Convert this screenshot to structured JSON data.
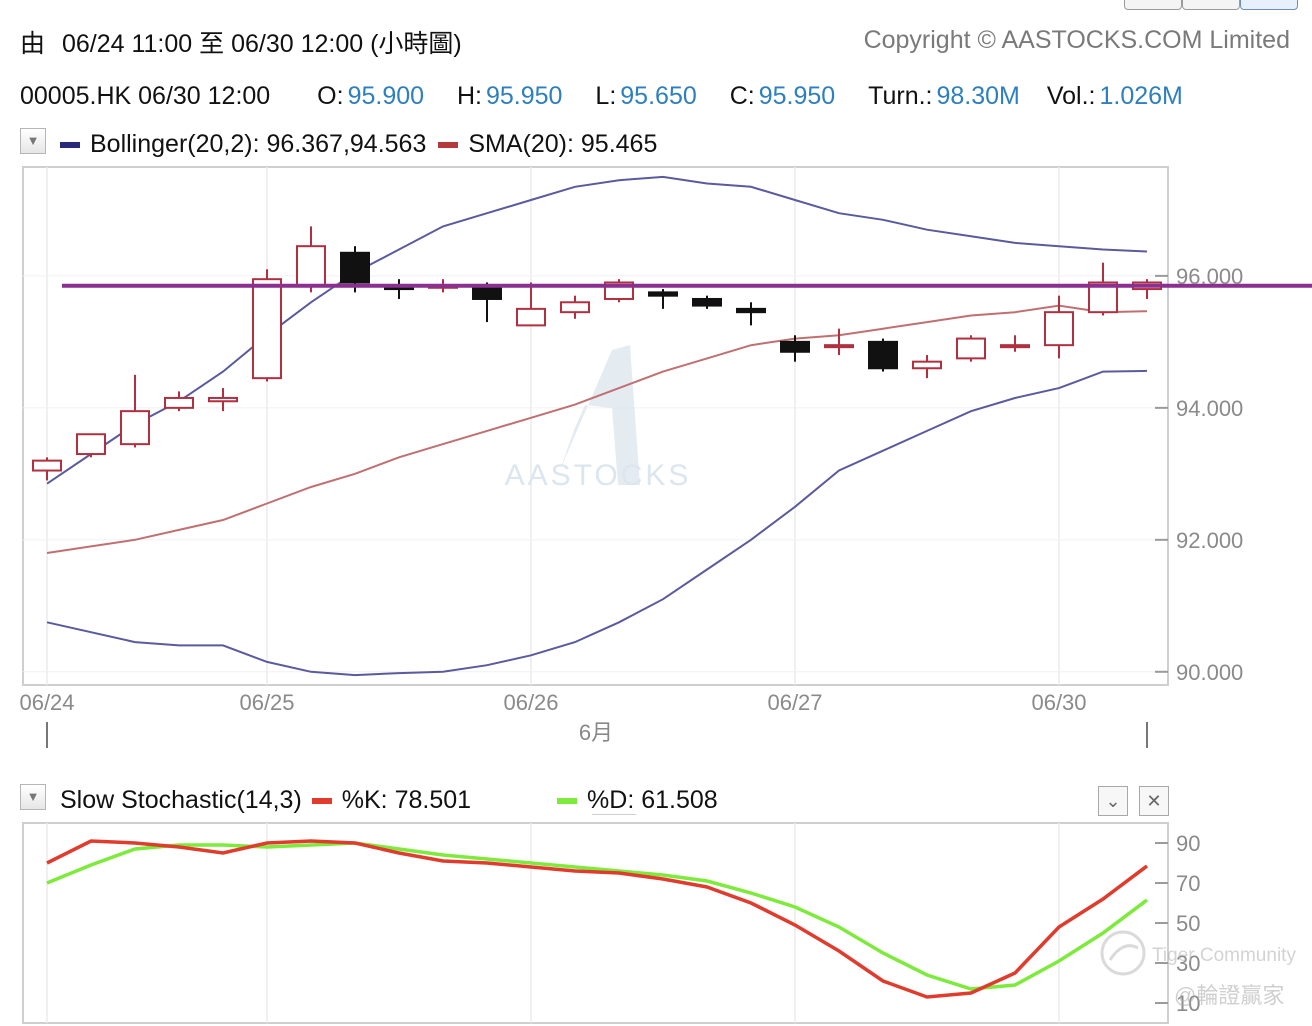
{
  "header": {
    "from_label": "由",
    "range_text": "06/24 11:00 至  06/30 12:00 (小時圖)",
    "copyright": "Copyright © AASTOCKS.COM Limited"
  },
  "quote": {
    "symbol_time": "00005.HK  06/30 12:00",
    "open_label": "O:",
    "open": "95.900",
    "high_label": "H:",
    "high": "95.950",
    "low_label": "L:",
    "low": "95.650",
    "close_label": "C:",
    "close": "95.950",
    "turn_label": "Turn.:",
    "turn": "98.30M",
    "vol_label": "Vol.:",
    "vol": "1.026M"
  },
  "main_legend": {
    "dropdown_icon": "triangle-down-icon",
    "bollinger_text": "Bollinger(20,2): 96.367,94.563",
    "sma_text": "SMA(20): 95.465",
    "bollinger_color": "#2b2a7a",
    "sma_color": "#b23a3a"
  },
  "stoch_legend": {
    "dropdown_icon": "triangle-down-icon",
    "title": "Slow Stochastic(14,3)",
    "k_text": "%K: 78.501",
    "d_text": "%D: 61.508",
    "k_color": "#e03c2e",
    "d_color": "#7dea3c",
    "collapse_icon": "chevron-down-icon",
    "close_icon": "close-icon"
  },
  "watermark": {
    "text": "AASTOCKS",
    "overlay_text_1": "Tiger Community",
    "overlay_text_2": "@輪證贏家"
  },
  "chart_data": [
    {
      "type": "candlestick",
      "title": "",
      "x_tick_labels": [
        {
          "label": "06/24",
          "index": 0
        },
        {
          "label": "06/25",
          "index": 5
        },
        {
          "label": "06/26",
          "index": 11
        },
        {
          "label": "06/27",
          "index": 17
        },
        {
          "label": "06/30",
          "index": 23
        }
      ],
      "month_label": "6月",
      "y_ticks": [
        "90.000",
        "92.000",
        "94.000",
        "96.000"
      ],
      "y_tick_values": [
        90,
        92,
        94,
        96
      ],
      "ylim": [
        89.8,
        97.65
      ],
      "horizontal_line": {
        "value": 95.85,
        "color": "#8b2f91"
      },
      "candles": [
        {
          "o": 93.05,
          "h": 93.25,
          "l": 92.9,
          "c": 93.2
        },
        {
          "o": 93.3,
          "h": 93.6,
          "l": 93.25,
          "c": 93.6
        },
        {
          "o": 93.45,
          "h": 94.5,
          "l": 93.4,
          "c": 93.95
        },
        {
          "o": 94.0,
          "h": 94.25,
          "l": 93.95,
          "c": 94.15
        },
        {
          "o": 94.1,
          "h": 94.3,
          "l": 93.95,
          "c": 94.15
        },
        {
          "o": 94.45,
          "h": 96.1,
          "l": 94.4,
          "c": 95.95
        },
        {
          "o": 95.85,
          "h": 96.75,
          "l": 95.75,
          "c": 96.45
        },
        {
          "o": 96.35,
          "h": 96.45,
          "l": 95.75,
          "c": 95.9
        },
        {
          "o": 95.85,
          "h": 95.95,
          "l": 95.65,
          "c": 95.8
        },
        {
          "o": 95.85,
          "h": 95.95,
          "l": 95.75,
          "c": 95.85
        },
        {
          "o": 95.85,
          "h": 95.9,
          "l": 95.3,
          "c": 95.65
        },
        {
          "o": 95.25,
          "h": 95.9,
          "l": 95.25,
          "c": 95.5
        },
        {
          "o": 95.45,
          "h": 95.7,
          "l": 95.35,
          "c": 95.6
        },
        {
          "o": 95.65,
          "h": 95.95,
          "l": 95.6,
          "c": 95.9
        },
        {
          "o": 95.75,
          "h": 95.8,
          "l": 95.5,
          "c": 95.7
        },
        {
          "o": 95.65,
          "h": 95.7,
          "l": 95.5,
          "c": 95.55
        },
        {
          "o": 95.5,
          "h": 95.6,
          "l": 95.25,
          "c": 95.45
        },
        {
          "o": 95.0,
          "h": 95.1,
          "l": 94.7,
          "c": 94.85
        },
        {
          "o": 94.95,
          "h": 95.2,
          "l": 94.8,
          "c": 94.95
        },
        {
          "o": 95.0,
          "h": 95.05,
          "l": 94.55,
          "c": 94.6
        },
        {
          "o": 94.6,
          "h": 94.8,
          "l": 94.45,
          "c": 94.7
        },
        {
          "o": 94.75,
          "h": 95.1,
          "l": 94.7,
          "c": 95.05
        },
        {
          "o": 94.95,
          "h": 95.1,
          "l": 94.85,
          "c": 94.95
        },
        {
          "o": 94.95,
          "h": 95.7,
          "l": 94.75,
          "c": 95.45
        },
        {
          "o": 95.45,
          "h": 96.2,
          "l": 95.4,
          "c": 95.9
        },
        {
          "o": 95.8,
          "h": 95.95,
          "l": 95.65,
          "c": 95.9
        }
      ],
      "series": [
        {
          "name": "Bollinger(20,2) upper",
          "color": "#5a5a9e",
          "values": [
            92.85,
            93.3,
            93.75,
            94.1,
            94.55,
            95.1,
            95.6,
            96.05,
            96.4,
            96.75,
            96.95,
            97.15,
            97.35,
            97.45,
            97.5,
            97.4,
            97.35,
            97.15,
            96.95,
            96.85,
            96.7,
            96.6,
            96.5,
            96.45,
            96.4,
            96.37
          ]
        },
        {
          "name": "Bollinger(20,2) lower",
          "color": "#5a5a9e",
          "values": [
            90.75,
            90.6,
            90.45,
            90.4,
            90.4,
            90.15,
            90.0,
            89.95,
            89.98,
            90.0,
            90.1,
            90.25,
            90.45,
            90.75,
            91.1,
            91.55,
            92.0,
            92.5,
            93.05,
            93.35,
            93.65,
            93.95,
            94.15,
            94.3,
            94.55,
            94.56
          ]
        },
        {
          "name": "SMA(20)",
          "color": "#c07070",
          "values": [
            91.8,
            91.9,
            92.0,
            92.15,
            92.3,
            92.55,
            92.8,
            93.0,
            93.25,
            93.45,
            93.65,
            93.85,
            94.05,
            94.3,
            94.55,
            94.75,
            94.95,
            95.05,
            95.1,
            95.2,
            95.3,
            95.4,
            95.45,
            95.55,
            95.45,
            95.465
          ]
        }
      ]
    },
    {
      "type": "line",
      "title": "",
      "y_ticks": [
        "90",
        "70",
        "50",
        "30",
        "10"
      ],
      "y_tick_values": [
        90,
        70,
        50,
        30,
        10
      ],
      "ylim": [
        0,
        100
      ],
      "series": [
        {
          "name": "%K",
          "color": "#e03c2e",
          "values": [
            80,
            91,
            90,
            88,
            85,
            90,
            91,
            90,
            85,
            81,
            80,
            78,
            76,
            75,
            72,
            68,
            60,
            49,
            36,
            21,
            13,
            15,
            25,
            48,
            62,
            78.5
          ]
        },
        {
          "name": "%D",
          "color": "#7dea3c",
          "values": [
            70,
            79,
            87,
            89,
            89,
            88,
            89,
            90,
            87,
            84,
            82,
            80,
            78,
            76,
            74,
            71,
            65,
            58,
            48,
            35,
            24,
            17,
            19,
            31,
            45,
            61.5
          ]
        }
      ]
    }
  ]
}
